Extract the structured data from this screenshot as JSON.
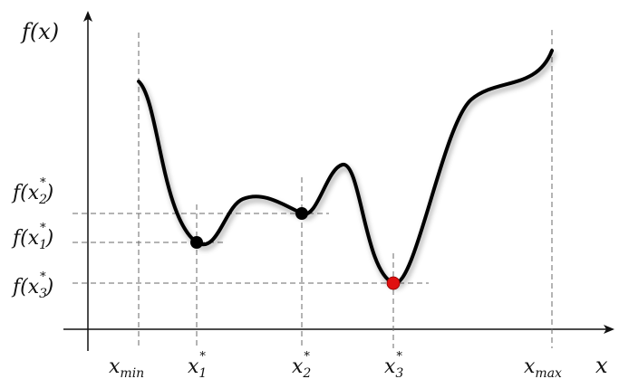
{
  "diagram": {
    "y_axis_label": "f(x)",
    "x_axis_label": "x",
    "x_labels": [
      {
        "key": "xmin",
        "base": "x",
        "sub": "min",
        "sup": ""
      },
      {
        "key": "x1",
        "base": "x",
        "sub": "1",
        "sup": "*"
      },
      {
        "key": "x2",
        "base": "x",
        "sub": "2",
        "sup": "*"
      },
      {
        "key": "x3",
        "base": "x",
        "sub": "3",
        "sup": "*"
      },
      {
        "key": "xmax",
        "base": "x",
        "sub": "max",
        "sup": ""
      }
    ],
    "y_labels": [
      {
        "key": "f2",
        "text_pre": "f(",
        "base": "x",
        "sub": "2",
        "sup": "*",
        "text_post": ")"
      },
      {
        "key": "f1",
        "text_pre": "f(",
        "base": "x",
        "sub": "1",
        "sup": "*",
        "text_post": ")"
      },
      {
        "key": "f3",
        "text_pre": "f(",
        "base": "x",
        "sub": "3",
        "sup": "*",
        "text_post": ")"
      }
    ],
    "colors": {
      "curve": "#000000",
      "local_min_point": "#000000",
      "global_min_point": "#e01010",
      "guide_lines": "#6a6a6a",
      "axes": "#111111"
    }
  }
}
